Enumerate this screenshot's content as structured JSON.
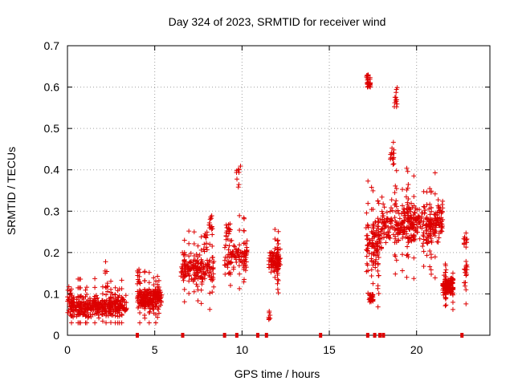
{
  "chart_data": {
    "type": "scatter",
    "title": "Day 324 of 2023, SRMTID for receiver wind",
    "xlabel": "GPS time / hours",
    "ylabel": "SRMTID / TECUs",
    "xlim": [
      0,
      24.2
    ],
    "ylim": [
      0,
      0.7
    ],
    "xticks": [
      0,
      5,
      10,
      15,
      20
    ],
    "yticks": [
      0,
      0.1,
      0.2,
      0.3,
      0.4,
      0.5,
      0.6,
      0.7
    ],
    "grid": true,
    "marker": "+",
    "color": "#dd0000",
    "bottom_markers_x": [
      4.0,
      6.6,
      9.0,
      9.7,
      10.9,
      11.4,
      14.5,
      17.2,
      17.6,
      17.9,
      18.1,
      22.6
    ],
    "segments": [
      {
        "x0": 0.0,
        "x1": 3.4,
        "n": 340,
        "base": 0.07,
        "noise": 0.035,
        "spikes": [
          [
            2.2,
            0.18,
            0.13
          ],
          [
            0.1,
            0.12,
            0.06
          ]
        ]
      },
      {
        "x0": 4.0,
        "x1": 5.4,
        "n": 200,
        "base": 0.09,
        "noise": 0.035,
        "spikes": [
          [
            4.05,
            0.16,
            0.05
          ]
        ]
      },
      {
        "x0": 6.5,
        "x1": 8.4,
        "n": 180,
        "base": 0.16,
        "noise": 0.05,
        "spikes": [
          [
            8.2,
            0.29,
            0.04
          ],
          [
            7.9,
            0.25,
            0.05
          ]
        ]
      },
      {
        "x0": 9.0,
        "x1": 10.3,
        "n": 110,
        "base": 0.19,
        "noise": 0.05,
        "spikes": [
          [
            9.8,
            0.41,
            0.06
          ],
          [
            9.2,
            0.27,
            0.04
          ]
        ]
      },
      {
        "x0": 11.5,
        "x1": 12.2,
        "n": 90,
        "base": 0.18,
        "noise": 0.04,
        "spikes": [
          [
            11.5,
            0.065,
            0.03
          ]
        ]
      },
      {
        "x0": 17.1,
        "x1": 18.0,
        "n": 150,
        "base": 0.22,
        "noise": 0.09,
        "spikes": [
          [
            17.25,
            0.63,
            0.03
          ],
          [
            17.4,
            0.1,
            0.02
          ]
        ]
      },
      {
        "x0": 18.0,
        "x1": 21.5,
        "n": 360,
        "base": 0.27,
        "noise": 0.07,
        "spikes": [
          [
            18.8,
            0.6,
            0.05
          ],
          [
            18.6,
            0.47,
            0.06
          ]
        ]
      },
      {
        "x0": 21.5,
        "x1": 22.1,
        "n": 110,
        "base": 0.12,
        "noise": 0.03,
        "spikes": []
      },
      {
        "x0": 22.7,
        "x1": 22.9,
        "n": 25,
        "base": 0.15,
        "noise": 0.05,
        "spikes": [
          [
            22.8,
            0.24,
            0.02
          ]
        ]
      }
    ]
  }
}
